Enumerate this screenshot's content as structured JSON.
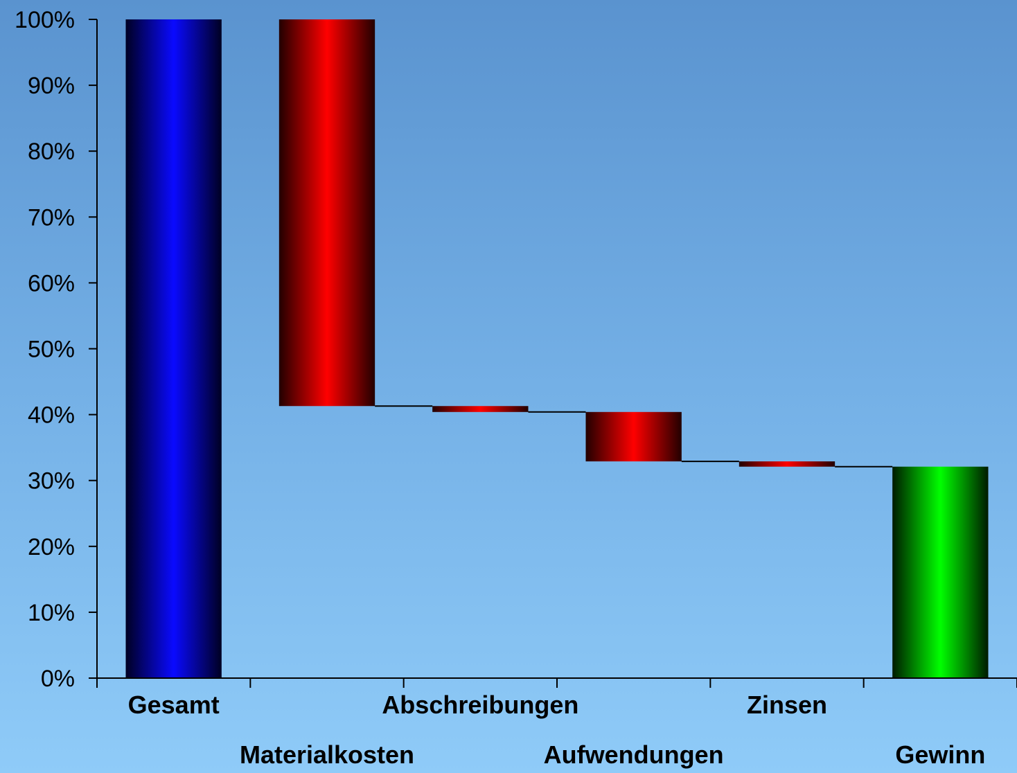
{
  "chart_data": {
    "type": "bar",
    "subtype": "waterfall",
    "title": "",
    "xlabel": "",
    "ylabel": "",
    "ylim": [
      0,
      100
    ],
    "y_ticks": [
      "0%",
      "10%",
      "20%",
      "30%",
      "40%",
      "50%",
      "60%",
      "70%",
      "80%",
      "90%",
      "100%"
    ],
    "grid": false,
    "legend": "none",
    "categories": [
      "Gesamt",
      "Materialkosten",
      "Abschreibungen",
      "Aufwendungen",
      "Zinsen",
      "Gewinn"
    ],
    "bars": [
      {
        "label": "Gesamt",
        "start": 0,
        "end": 100,
        "kind": "total",
        "color": "#0000ff"
      },
      {
        "label": "Materialkosten",
        "start": 41.3,
        "end": 100,
        "kind": "decrease",
        "color": "#ff0000"
      },
      {
        "label": "Abschreibungen",
        "start": 40.4,
        "end": 41.3,
        "kind": "decrease",
        "color": "#ff0000"
      },
      {
        "label": "Aufwendungen",
        "start": 32.9,
        "end": 40.4,
        "kind": "decrease",
        "color": "#ff0000"
      },
      {
        "label": "Zinsen",
        "start": 32.1,
        "end": 32.9,
        "kind": "decrease",
        "color": "#ff0000"
      },
      {
        "label": "Gewinn",
        "start": 0,
        "end": 32.1,
        "kind": "result",
        "color": "#00ff00"
      }
    ]
  }
}
